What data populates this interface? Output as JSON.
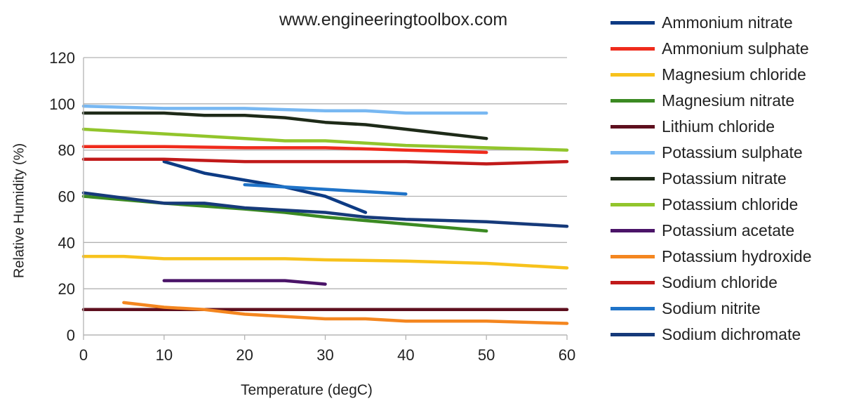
{
  "source_text": "www.engineeringtoolbox.com",
  "chart_data": {
    "type": "line",
    "title": "",
    "xlabel": "Temperature (degC)",
    "ylabel": "Relative Humidity (%)",
    "xlim": [
      0,
      60
    ],
    "ylim": [
      0,
      120
    ],
    "xticks": [
      "0",
      "10",
      "20",
      "30",
      "40",
      "50",
      "60"
    ],
    "yticks": [
      "0",
      "20",
      "40",
      "60",
      "80",
      "100",
      "120"
    ],
    "grid": "horizontal",
    "legend_position": "right",
    "series": [
      {
        "name": "Ammonium nitrate",
        "color": "#0d3b84",
        "points": [
          [
            10,
            75
          ],
          [
            15,
            70
          ],
          [
            20,
            67
          ],
          [
            25,
            64
          ],
          [
            30,
            60
          ],
          [
            35,
            53
          ]
        ]
      },
      {
        "name": "Ammonium sulphate",
        "color": "#ef2b1c",
        "points": [
          [
            0,
            81.5
          ],
          [
            10,
            81.5
          ],
          [
            20,
            81
          ],
          [
            30,
            81
          ],
          [
            40,
            80
          ],
          [
            50,
            79
          ]
        ]
      },
      {
        "name": "Magnesium chloride",
        "color": "#f7c21c",
        "points": [
          [
            0,
            34
          ],
          [
            5,
            34
          ],
          [
            10,
            33
          ],
          [
            20,
            33
          ],
          [
            25,
            33
          ],
          [
            30,
            32.5
          ],
          [
            40,
            32
          ],
          [
            50,
            31
          ],
          [
            60,
            29
          ]
        ]
      },
      {
        "name": "Magnesium nitrate",
        "color": "#3b8a22",
        "points": [
          [
            0,
            60
          ],
          [
            10,
            57
          ],
          [
            20,
            54.5
          ],
          [
            25,
            53
          ],
          [
            30,
            51
          ],
          [
            40,
            48
          ],
          [
            50,
            45
          ]
        ]
      },
      {
        "name": "Lithium chloride",
        "color": "#5e0f1e",
        "points": [
          [
            0,
            11
          ],
          [
            10,
            11
          ],
          [
            20,
            11
          ],
          [
            30,
            11
          ],
          [
            40,
            11
          ],
          [
            50,
            11
          ],
          [
            60,
            11
          ]
        ]
      },
      {
        "name": "Potassium sulphate",
        "color": "#78b8f2",
        "points": [
          [
            0,
            99
          ],
          [
            10,
            98
          ],
          [
            20,
            98
          ],
          [
            30,
            97
          ],
          [
            35,
            97
          ],
          [
            40,
            96
          ],
          [
            50,
            96
          ]
        ]
      },
      {
        "name": "Potassium nitrate",
        "color": "#1e2a18",
        "points": [
          [
            0,
            96
          ],
          [
            10,
            96
          ],
          [
            15,
            95
          ],
          [
            20,
            95
          ],
          [
            25,
            94
          ],
          [
            30,
            92
          ],
          [
            35,
            91
          ],
          [
            40,
            89
          ],
          [
            50,
            85
          ]
        ]
      },
      {
        "name": "Potassium chloride",
        "color": "#92c52c",
        "points": [
          [
            0,
            89
          ],
          [
            10,
            87
          ],
          [
            20,
            85
          ],
          [
            25,
            84
          ],
          [
            30,
            84
          ],
          [
            40,
            82
          ],
          [
            50,
            81
          ],
          [
            60,
            80
          ]
        ]
      },
      {
        "name": "Potassium acetate",
        "color": "#4a1468",
        "points": [
          [
            10,
            23.5
          ],
          [
            15,
            23.5
          ],
          [
            20,
            23.5
          ],
          [
            25,
            23.5
          ],
          [
            30,
            22
          ]
        ]
      },
      {
        "name": "Potassium hydroxide",
        "color": "#f4861f",
        "points": [
          [
            5,
            14
          ],
          [
            10,
            12
          ],
          [
            15,
            11
          ],
          [
            20,
            9
          ],
          [
            30,
            7
          ],
          [
            35,
            7
          ],
          [
            40,
            6
          ],
          [
            50,
            6
          ],
          [
            60,
            5
          ]
        ]
      },
      {
        "name": "Sodium chloride",
        "color": "#c11a1a",
        "points": [
          [
            0,
            76
          ],
          [
            10,
            76
          ],
          [
            20,
            75
          ],
          [
            30,
            75
          ],
          [
            40,
            75
          ],
          [
            50,
            74
          ],
          [
            60,
            75
          ]
        ]
      },
      {
        "name": "Sodium nitrite",
        "color": "#1f73c8",
        "points": [
          [
            20,
            65
          ],
          [
            25,
            64
          ],
          [
            30,
            63
          ],
          [
            35,
            62
          ],
          [
            40,
            61
          ]
        ]
      },
      {
        "name": "Sodium dichromate",
        "color": "#163a7a",
        "points": [
          [
            0,
            61.5
          ],
          [
            10,
            57
          ],
          [
            15,
            57
          ],
          [
            20,
            55
          ],
          [
            30,
            53
          ],
          [
            35,
            51
          ],
          [
            40,
            50
          ],
          [
            50,
            49
          ],
          [
            60,
            47
          ]
        ]
      }
    ]
  }
}
